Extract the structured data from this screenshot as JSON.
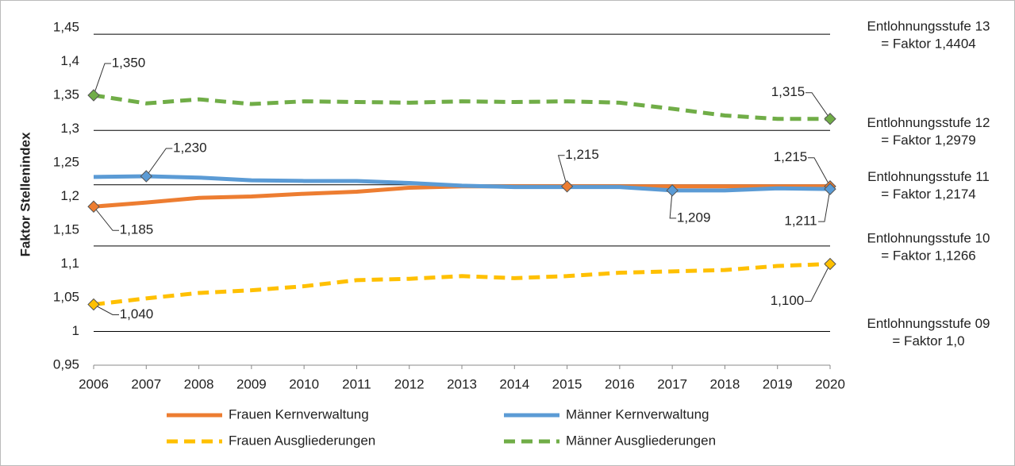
{
  "chart_data": {
    "type": "line",
    "y_label": "Faktor Stellenindex",
    "x": [
      2006,
      2007,
      2008,
      2009,
      2010,
      2011,
      2012,
      2013,
      2014,
      2015,
      2016,
      2017,
      2018,
      2019,
      2020
    ],
    "xlim": [
      2006,
      2020
    ],
    "xticks": [
      2006,
      2007,
      2008,
      2009,
      2010,
      2011,
      2012,
      2013,
      2014,
      2015,
      2016,
      2017,
      2018,
      2019,
      2020
    ],
    "ylim": [
      0.95,
      1.45
    ],
    "yticks": [
      {
        "value": 0.95,
        "label": "0,95"
      },
      1,
      {
        "value": 1.05,
        "label": "1,05"
      },
      {
        "value": 1.1,
        "label": "1,1"
      },
      {
        "value": 1.15,
        "label": "1,15"
      },
      {
        "value": 1.2,
        "label": "1,2"
      },
      {
        "value": 1.25,
        "label": "1,25"
      },
      {
        "value": 1.3,
        "label": "1,3"
      },
      {
        "value": 1.35,
        "label": "1,35"
      },
      {
        "value": 1.4,
        "label": "1,4"
      },
      {
        "value": 1.45,
        "label": "1,45"
      }
    ],
    "grid": false,
    "reference_lines": [
      {
        "value": 1.4404,
        "label": [
          "Entlohnungsstufe  13",
          "= Faktor 1,4404"
        ]
      },
      {
        "value": 1.2979,
        "label": [
          "Entlohnungsstufe  12",
          "= Faktor 1,2979"
        ]
      },
      {
        "value": 1.2174,
        "label": [
          "Entlohnungsstufe  11",
          "= Faktor 1,2174"
        ]
      },
      {
        "value": 1.1266,
        "label": [
          "Entlohnungsstufe  10",
          "= Faktor 1,1266"
        ]
      },
      {
        "value": 1.0,
        "label": [
          "Entlohnungsstufe  09",
          "= Faktor 1,0"
        ]
      }
    ],
    "series": [
      {
        "name": "Frauen Kernverwaltung",
        "color": "#ed7d31",
        "dashed": false,
        "values": [
          1.185,
          1.191,
          1.198,
          1.2,
          1.204,
          1.207,
          1.213,
          1.215,
          1.215,
          1.215,
          1.215,
          1.215,
          1.215,
          1.215,
          1.215
        ],
        "value_labels": [
          "1,185",
          null,
          null,
          null,
          null,
          null,
          null,
          null,
          null,
          "1,215",
          null,
          null,
          null,
          null,
          "1,215"
        ]
      },
      {
        "name": "Männer Kernverwaltung",
        "color": "#5b9bd5",
        "dashed": false,
        "values": [
          1.229,
          1.23,
          1.228,
          1.224,
          1.223,
          1.223,
          1.22,
          1.216,
          1.214,
          1.214,
          1.214,
          1.209,
          1.209,
          1.212,
          1.211
        ],
        "value_labels": [
          null,
          "1,230",
          null,
          null,
          null,
          null,
          null,
          null,
          null,
          null,
          null,
          "1,209",
          null,
          null,
          "1,211"
        ]
      },
      {
        "name": "Frauen Ausgliederungen",
        "color": "#ffc000",
        "dashed": true,
        "values": [
          1.04,
          1.049,
          1.057,
          1.061,
          1.067,
          1.076,
          1.078,
          1.082,
          1.079,
          1.082,
          1.087,
          1.089,
          1.091,
          1.097,
          1.1
        ],
        "value_labels": [
          "1,040",
          null,
          null,
          null,
          null,
          null,
          null,
          null,
          null,
          null,
          null,
          null,
          null,
          null,
          "1,100"
        ]
      },
      {
        "name": "Männer Ausgliederungen",
        "color": "#70ad47",
        "dashed": true,
        "values": [
          1.35,
          1.338,
          1.344,
          1.337,
          1.341,
          1.34,
          1.339,
          1.341,
          1.34,
          1.341,
          1.339,
          1.33,
          1.32,
          1.315,
          1.315
        ],
        "value_labels": [
          "1,350",
          null,
          null,
          null,
          null,
          null,
          null,
          null,
          null,
          null,
          null,
          null,
          null,
          null,
          "1,315"
        ]
      }
    ]
  }
}
